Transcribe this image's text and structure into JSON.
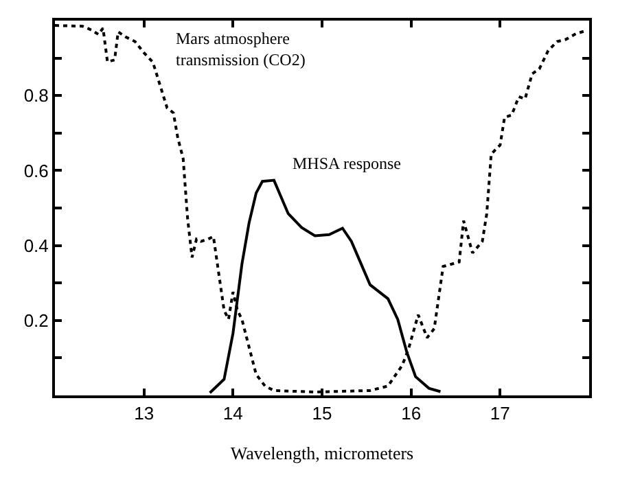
{
  "chart_data": {
    "type": "line",
    "xlabel": "Wavelength, micrometers",
    "xlim": [
      12,
      18
    ],
    "xticks": [
      13,
      14,
      15,
      16,
      17
    ],
    "ylim": [
      0,
      1
    ],
    "yticks": [
      {
        "value": 0.1,
        "label": null
      },
      0.2,
      {
        "value": 0.3,
        "label": null
      },
      0.4,
      {
        "value": 0.5,
        "label": null
      },
      0.6,
      {
        "value": 0.7,
        "label": null
      },
      0.8,
      {
        "value": 0.9,
        "label": null
      }
    ],
    "grid": false,
    "marker": "none",
    "annotations": [
      "Mars atmosphere\ntransmission (CO2)",
      "MHSA response"
    ],
    "series": [
      {
        "color": "#000000",
        "line_style": "dotted",
        "x": [
          12.0,
          12.31,
          12.41,
          12.49,
          12.54,
          12.59,
          12.67,
          12.71,
          12.79,
          12.9,
          13.0,
          13.1,
          13.18,
          13.26,
          13.33,
          13.38,
          13.44,
          13.49,
          13.54,
          13.59,
          13.64,
          13.72,
          13.78,
          13.84,
          13.9,
          13.95,
          14.0,
          14.05,
          14.1,
          14.18,
          14.26,
          14.36,
          14.46,
          14.92,
          15.54,
          15.74,
          15.9,
          15.97,
          16.08,
          16.18,
          16.26,
          16.36,
          16.54,
          16.59,
          16.69,
          16.8,
          16.85,
          16.9,
          17.0,
          17.05,
          17.13,
          17.21,
          17.28,
          17.36,
          17.44,
          17.54,
          17.64,
          17.74,
          17.85,
          17.95
        ],
        "values": [
          0.987,
          0.985,
          0.975,
          0.963,
          0.98,
          0.89,
          0.895,
          0.97,
          0.957,
          0.944,
          0.914,
          0.889,
          0.828,
          0.767,
          0.754,
          0.687,
          0.632,
          0.472,
          0.368,
          0.417,
          0.411,
          0.417,
          0.424,
          0.325,
          0.227,
          0.203,
          0.276,
          0.227,
          0.203,
          0.129,
          0.056,
          0.025,
          0.013,
          0.009,
          0.013,
          0.025,
          0.08,
          0.123,
          0.215,
          0.154,
          0.178,
          0.344,
          0.356,
          0.466,
          0.38,
          0.411,
          0.485,
          0.644,
          0.668,
          0.742,
          0.748,
          0.797,
          0.791,
          0.858,
          0.871,
          0.92,
          0.944,
          0.95,
          0.965,
          0.972
        ]
      },
      {
        "color": "#000000",
        "line_style": "solid",
        "x": [
          13.74,
          13.9,
          14.0,
          14.1,
          14.18,
          14.26,
          14.33,
          14.46,
          14.62,
          14.77,
          14.92,
          15.08,
          15.23,
          15.33,
          15.44,
          15.54,
          15.74,
          15.85,
          15.95,
          16.05,
          16.2,
          16.33
        ],
        "values": [
          0.007,
          0.043,
          0.166,
          0.35,
          0.46,
          0.54,
          0.571,
          0.574,
          0.485,
          0.448,
          0.426,
          0.429,
          0.446,
          0.411,
          0.35,
          0.295,
          0.258,
          0.203,
          0.117,
          0.05,
          0.019,
          0.01
        ]
      }
    ]
  }
}
